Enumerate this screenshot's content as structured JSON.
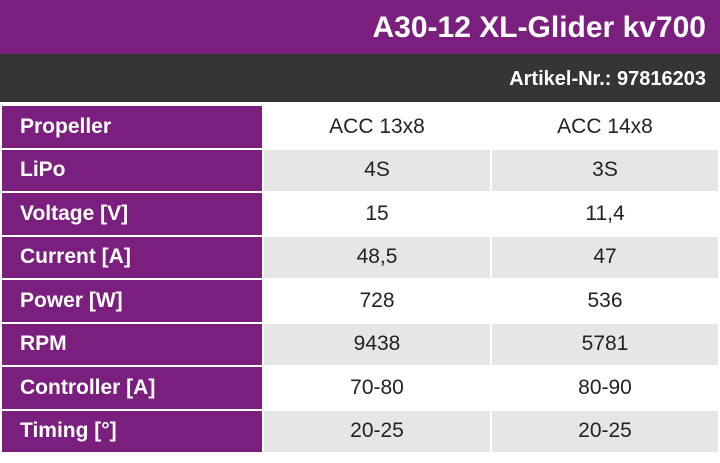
{
  "header": {
    "title": "A30-12 XL-Glider kv700",
    "article": "Artikel-Nr.: 97816203"
  },
  "table": {
    "rows": [
      [
        "Propeller",
        "ACC 13x8",
        "ACC 14x8"
      ],
      [
        "LiPo",
        "4S",
        "3S"
      ],
      [
        "Voltage [V]",
        "15",
        "11,4"
      ],
      [
        "Current [A]",
        "48,5",
        "47"
      ],
      [
        "Power [W]",
        "728",
        "536"
      ],
      [
        "RPM",
        "9438",
        "5781"
      ],
      [
        "Controller [A]",
        "70-80",
        "80-90"
      ],
      [
        "Timing [°]",
        "20-25",
        "20-25"
      ]
    ]
  }
}
